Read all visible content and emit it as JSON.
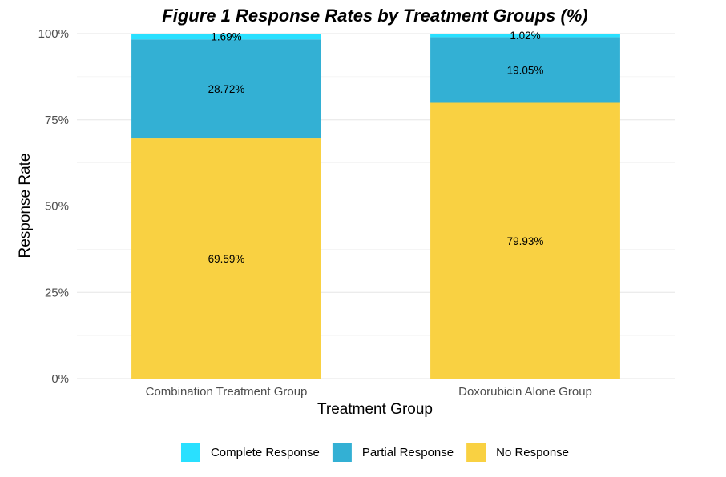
{
  "chart_data": {
    "type": "bar",
    "stacked": true,
    "title": "Figure 1 Response Rates by Treatment Groups (%)",
    "xlabel": "Treatment Group",
    "ylabel": "Response Rate",
    "ylim": [
      0,
      100
    ],
    "yticks": [
      "0%",
      "25%",
      "50%",
      "75%",
      "100%"
    ],
    "categories": [
      "Combination Treatment Group",
      "Doxorubicin Alone Group"
    ],
    "series": [
      {
        "name": "No Response",
        "color": "#F9D142",
        "values": [
          69.59,
          79.93
        ],
        "labels": [
          "69.59%",
          "79.93%"
        ]
      },
      {
        "name": "Partial Response",
        "color": "#33B0D4",
        "values": [
          28.72,
          19.05
        ],
        "labels": [
          "28.72%",
          "19.05%"
        ]
      },
      {
        "name": "Complete Response",
        "color": "#29E0FF",
        "values": [
          1.69,
          1.02
        ],
        "labels": [
          "1.69%",
          "1.02%"
        ]
      }
    ],
    "legend": {
      "position": "bottom",
      "order": [
        "Complete Response",
        "Partial Response",
        "No Response"
      ]
    },
    "grid": true
  }
}
